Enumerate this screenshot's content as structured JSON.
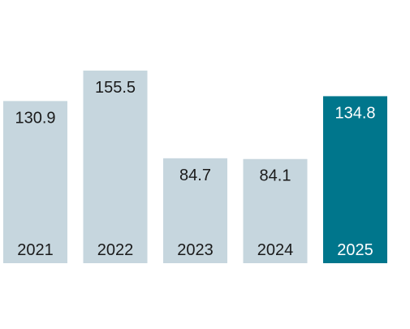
{
  "chart_data": {
    "type": "bar",
    "title": "",
    "xlabel": "",
    "ylabel": "",
    "categories": [
      "2021",
      "2022",
      "2023",
      "2024",
      "2025"
    ],
    "values": [
      130.9,
      155.5,
      84.7,
      84.1,
      134.8
    ],
    "value_labels": [
      "130.9",
      "155.5",
      "84.7",
      "84.1",
      "134.8"
    ],
    "ylim": [
      0,
      170
    ],
    "grid": false,
    "legend": "none",
    "highlight_index": 4,
    "colors": {
      "bar": "#c6d6de",
      "highlight": "#00768c",
      "text": "#1a1a1a",
      "highlight_text": "#ffffff"
    }
  }
}
